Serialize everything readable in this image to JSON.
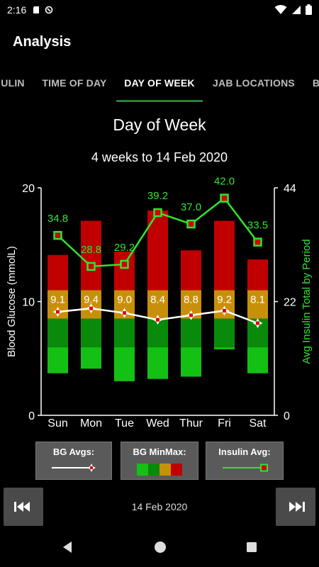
{
  "status": {
    "time": "2:16"
  },
  "app": {
    "title": "Analysis"
  },
  "tabs": [
    {
      "label": "ULIN"
    },
    {
      "label": "TIME OF DAY"
    },
    {
      "label": "DAY OF WEEK"
    },
    {
      "label": "JAB LOCATIONS"
    },
    {
      "label": "B"
    }
  ],
  "header": {
    "title": "Day of Week",
    "subtitle": "4 weeks to 14 Feb 2020"
  },
  "legend": {
    "bg_avgs": "BG Avgs:",
    "bg_minmax": "BG MinMax:",
    "insulin_avg": "Insulin Avg:"
  },
  "nav": {
    "date": "14 Feb 2020"
  },
  "colors": {
    "low_light": "#14c014",
    "low": "#0a8a0a",
    "mid": "#c8900a",
    "high": "#c00000",
    "insulin": "#2ee62e",
    "avg_line": "#ffffff",
    "avg_marker": "#e00000",
    "tab_indicator": "#2e7d32"
  },
  "chart_data": {
    "type": "bar",
    "categories": [
      "Sun",
      "Mon",
      "Tue",
      "Wed",
      "Thur",
      "Fri",
      "Sat"
    ],
    "ylabel": "Blood Glucose (mmolL)",
    "y2label": "Avg Insulin Total by Period",
    "ylim": [
      0,
      20
    ],
    "y2lim": [
      0,
      44
    ],
    "yticks": [
      "0",
      "10",
      "20"
    ],
    "y2ticks": [
      "0",
      "22",
      "44"
    ],
    "series": [
      {
        "name": "BG MinMax",
        "ranges": [
          {
            "min": 3.7,
            "b1": 6.0,
            "b2": 8.5,
            "b3": 11.0,
            "max": 14.1
          },
          {
            "min": 4.1,
            "b1": 6.0,
            "b2": 8.5,
            "b3": 11.0,
            "max": 17.1
          },
          {
            "min": 3.0,
            "b1": 6.0,
            "b2": 8.5,
            "b3": 11.0,
            "max": 14.4
          },
          {
            "min": 3.2,
            "b1": 6.0,
            "b2": 8.5,
            "b3": 11.0,
            "max": 18.0
          },
          {
            "min": 3.4,
            "b1": 6.0,
            "b2": 8.5,
            "b3": 11.0,
            "max": 14.5
          },
          {
            "min": 5.8,
            "b1": 6.0,
            "b2": 8.5,
            "b3": 11.0,
            "max": 17.1
          },
          {
            "min": 3.7,
            "b1": 6.0,
            "b2": 8.5,
            "b3": 11.0,
            "max": 13.7
          }
        ]
      },
      {
        "name": "BG Avgs",
        "values": [
          9.1,
          9.4,
          9.0,
          8.4,
          8.8,
          9.2,
          8.1
        ],
        "labels": [
          "9.1",
          "9.4",
          "9.0",
          "8.4",
          "8.8",
          "9.2",
          "8.1"
        ]
      },
      {
        "name": "Insulin Avg",
        "values": [
          34.8,
          28.8,
          29.2,
          39.2,
          37.0,
          42.0,
          33.5
        ],
        "labels": [
          "34.8",
          "28.8",
          "29.2",
          "39.2",
          "37.0",
          "42.0",
          "33.5"
        ]
      }
    ]
  }
}
